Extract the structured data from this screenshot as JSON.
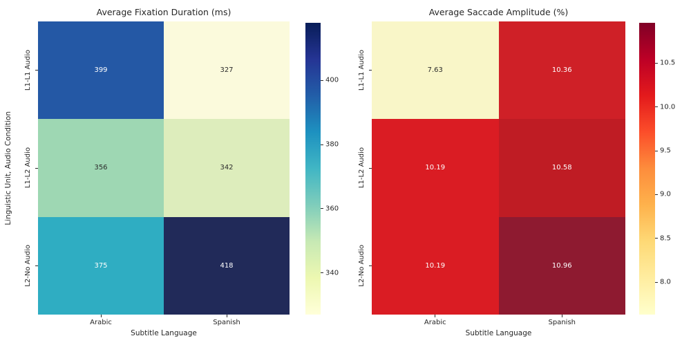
{
  "text_color": "#262626",
  "chart_data": [
    {
      "type": "heatmap",
      "title": "Average Fixation Duration (ms)",
      "xlabel": "Subtitle Language",
      "ylabel": "Linguistic Unit, Audio Condition",
      "x_categories": [
        "Arabic",
        "Spanish"
      ],
      "y_categories": [
        "L1-L1 Audio",
        "L1-L2 Audio",
        "L2-No Audio"
      ],
      "values": [
        [
          399,
          327
        ],
        [
          356,
          342
        ],
        [
          375,
          418
        ]
      ],
      "annotations": [
        [
          "399",
          "327"
        ],
        [
          "356",
          "342"
        ],
        [
          "375",
          "418"
        ]
      ],
      "cell_colors": [
        [
          "#2458a5",
          "#fbfadc"
        ],
        [
          "#9ed7b3",
          "#ddedbc"
        ],
        [
          "#2fadc2",
          "#212a59"
        ]
      ],
      "text_colors": [
        [
          "#ffffff",
          "#2b2b2b"
        ],
        [
          "#2b2b2b",
          "#2b2b2b"
        ],
        [
          "#ffffff",
          "#ffffff"
        ]
      ],
      "vmin": 327,
      "vmax": 418,
      "colormap": "YlGnBu",
      "colorbar_ticks": [
        "400",
        "380",
        "360",
        "340"
      ],
      "colorbar_gradient_top_to_bottom": [
        "#081d58",
        "#253494",
        "#225ea8",
        "#1d91c0",
        "#41b6c4",
        "#7fcdbb",
        "#c7e9b4",
        "#edf8b1",
        "#ffffd9"
      ]
    },
    {
      "type": "heatmap",
      "title": "Average Saccade Amplitude (%)",
      "xlabel": "Subtitle Language",
      "ylabel": "",
      "x_categories": [
        "Arabic",
        "Spanish"
      ],
      "y_categories": [
        "L1-L1 Audio",
        "L1-L2 Audio",
        "L2-No Audio"
      ],
      "values": [
        [
          7.63,
          10.36
        ],
        [
          10.19,
          10.58
        ],
        [
          10.19,
          10.96
        ]
      ],
      "annotations": [
        [
          "7.63",
          "10.36"
        ],
        [
          "10.19",
          "10.58"
        ],
        [
          "10.19",
          "10.96"
        ]
      ],
      "cell_colors": [
        [
          "#f9f6c8",
          "#cf2027"
        ],
        [
          "#da1c23",
          "#bf1c24"
        ],
        [
          "#da1c23",
          "#8e1a30"
        ]
      ],
      "text_colors": [
        [
          "#2b2b2b",
          "#ffffff"
        ],
        [
          "#ffffff",
          "#ffffff"
        ],
        [
          "#ffffff",
          "#ffffff"
        ]
      ],
      "vmin": 7.63,
      "vmax": 10.96,
      "colormap": "YlOrRd",
      "colorbar_ticks": [
        "10.5",
        "10.0",
        "9.5",
        "9.0",
        "8.5",
        "8.0"
      ],
      "colorbar_gradient_top_to_bottom": [
        "#800026",
        "#bd0026",
        "#e31a1c",
        "#fc4e2a",
        "#fd8d3c",
        "#feb24c",
        "#fed976",
        "#ffeda0",
        "#ffffcc"
      ]
    }
  ]
}
